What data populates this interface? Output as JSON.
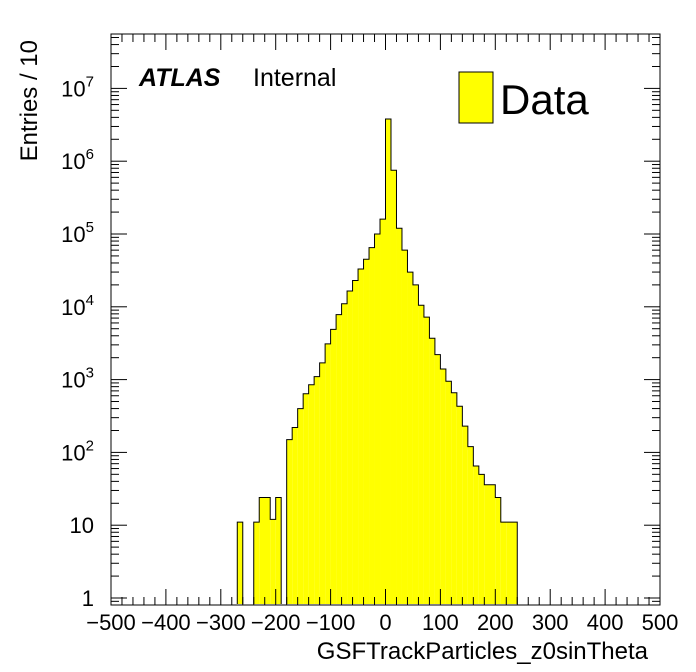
{
  "chart_data": {
    "type": "bar",
    "xlabel": "GSFTrackParticles_z0sinTheta",
    "ylabel": "Entries / 10",
    "xlim": [
      -500,
      500
    ],
    "ylim": [
      0.8,
      50000000
    ],
    "yscale": "log",
    "bin_width": 10,
    "x_ticks": [
      {
        "v": -500,
        "label": "−500"
      },
      {
        "v": -400,
        "label": "−400"
      },
      {
        "v": -300,
        "label": "−300"
      },
      {
        "v": -200,
        "label": "−200"
      },
      {
        "v": -100,
        "label": "−100"
      },
      {
        "v": 0,
        "label": "0"
      },
      {
        "v": 100,
        "label": "100"
      },
      {
        "v": 200,
        "label": "200"
      },
      {
        "v": 300,
        "label": "300"
      },
      {
        "v": 400,
        "label": "400"
      },
      {
        "v": 500,
        "label": "500"
      }
    ],
    "y_ticks": [
      {
        "v": 1,
        "base": "1",
        "exp": ""
      },
      {
        "v": 10,
        "base": "10",
        "exp": ""
      },
      {
        "v": 100,
        "base": "10",
        "exp": "2"
      },
      {
        "v": 1000,
        "base": "10",
        "exp": "3"
      },
      {
        "v": 10000,
        "base": "10",
        "exp": "4"
      },
      {
        "v": 100000,
        "base": "10",
        "exp": "5"
      },
      {
        "v": 1000000,
        "base": "10",
        "exp": "6"
      },
      {
        "v": 10000000,
        "base": "10",
        "exp": "7"
      }
    ],
    "bins": [
      {
        "x0": -270,
        "x1": -260,
        "y": 11
      },
      {
        "x0": -240,
        "x1": -230,
        "y": 11
      },
      {
        "x0": -230,
        "x1": -210,
        "y": 24
      },
      {
        "x0": -210,
        "x1": -200,
        "y": 12
      },
      {
        "x0": -200,
        "x1": -190,
        "y": 24
      },
      {
        "x0": -180,
        "x1": -170,
        "y": 150
      },
      {
        "x0": -170,
        "x1": -160,
        "y": 220
      },
      {
        "x0": -160,
        "x1": -150,
        "y": 400
      },
      {
        "x0": -150,
        "x1": -140,
        "y": 640
      },
      {
        "x0": -140,
        "x1": -130,
        "y": 850
      },
      {
        "x0": -130,
        "x1": -120,
        "y": 1100
      },
      {
        "x0": -120,
        "x1": -110,
        "y": 1700
      },
      {
        "x0": -110,
        "x1": -100,
        "y": 3100
      },
      {
        "x0": -100,
        "x1": -90,
        "y": 4900
      },
      {
        "x0": -90,
        "x1": -80,
        "y": 7800
      },
      {
        "x0": -80,
        "x1": -70,
        "y": 11000
      },
      {
        "x0": -70,
        "x1": -60,
        "y": 16500
      },
      {
        "x0": -60,
        "x1": -50,
        "y": 23000
      },
      {
        "x0": -50,
        "x1": -40,
        "y": 33000
      },
      {
        "x0": -40,
        "x1": -30,
        "y": 45000
      },
      {
        "x0": -30,
        "x1": -20,
        "y": 65000
      },
      {
        "x0": -20,
        "x1": -10,
        "y": 100000
      },
      {
        "x0": -10,
        "x1": 0,
        "y": 160000
      },
      {
        "x0": 0,
        "x1": 10,
        "y": 3800000
      },
      {
        "x0": 10,
        "x1": 20,
        "y": 750000
      },
      {
        "x0": 20,
        "x1": 30,
        "y": 120000
      },
      {
        "x0": 30,
        "x1": 40,
        "y": 60000
      },
      {
        "x0": 40,
        "x1": 50,
        "y": 30000
      },
      {
        "x0": 50,
        "x1": 60,
        "y": 20000
      },
      {
        "x0": 60,
        "x1": 70,
        "y": 10500
      },
      {
        "x0": 70,
        "x1": 80,
        "y": 7200
      },
      {
        "x0": 80,
        "x1": 90,
        "y": 3700
      },
      {
        "x0": 90,
        "x1": 100,
        "y": 2200
      },
      {
        "x0": 100,
        "x1": 110,
        "y": 1400
      },
      {
        "x0": 110,
        "x1": 120,
        "y": 950
      },
      {
        "x0": 120,
        "x1": 130,
        "y": 660
      },
      {
        "x0": 130,
        "x1": 140,
        "y": 430
      },
      {
        "x0": 140,
        "x1": 150,
        "y": 230
      },
      {
        "x0": 150,
        "x1": 160,
        "y": 120
      },
      {
        "x0": 160,
        "x1": 170,
        "y": 65
      },
      {
        "x0": 170,
        "x1": 180,
        "y": 50
      },
      {
        "x0": 180,
        "x1": 200,
        "y": 36
      },
      {
        "x0": 200,
        "x1": 210,
        "y": 24
      },
      {
        "x0": 210,
        "x1": 220,
        "y": 11
      },
      {
        "x0": 220,
        "x1": 240,
        "y": 11
      }
    ],
    "fill_color": "#ffff00",
    "legend": {
      "label": "Data",
      "position": "top-right"
    },
    "annotation": {
      "brand": "ATLAS",
      "status": "Internal"
    }
  }
}
